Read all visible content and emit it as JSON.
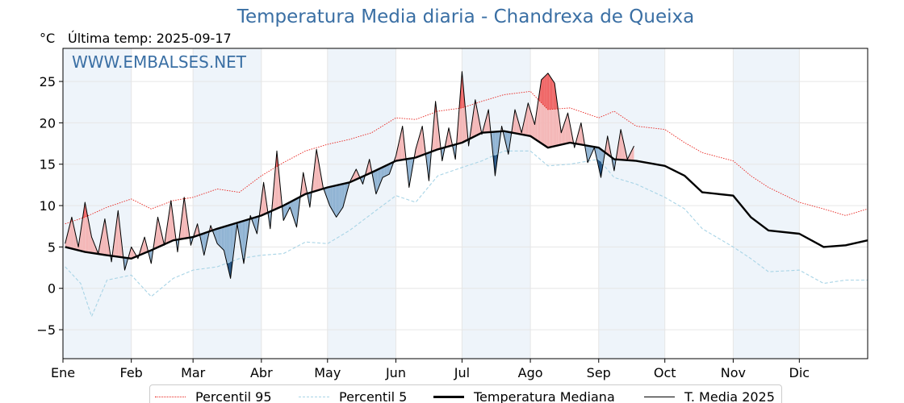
{
  "header": {
    "title": "Temperatura Media diaria - Chandrexa de Queixa",
    "unit": "°C",
    "last_temp_label": "Última temp: 2025-09-17",
    "watermark": "WWW.EMBALSES.NET"
  },
  "legend": {
    "p95": "Percentil 95",
    "p5": "Percentil 5",
    "median": "Temperatura Mediana",
    "current": "T. Media 2025"
  },
  "colors": {
    "title": "#3a6fa4",
    "p95": "#e8231d",
    "p5": "#a8d4e6",
    "median": "#000000",
    "current": "#000000",
    "above_fill": "#f4b6b6",
    "above_p95_fill": "#ef6464",
    "below_fill": "#8fb3d3",
    "below_p5_fill": "#1f4f7f",
    "month_band": "#eef4fa"
  },
  "chart_data": {
    "type": "line",
    "title": "Temperatura Media diaria - Chandrexa de Queixa",
    "ylabel": "°C",
    "ylim": [
      -8.5,
      29
    ],
    "xlim_days": [
      0,
      365
    ],
    "yticks": [
      -5,
      0,
      5,
      10,
      15,
      20,
      25
    ],
    "ytick_labels": [
      "−5",
      "0",
      "5",
      "10",
      "15",
      "20",
      "25"
    ],
    "months": [
      "Ene",
      "Feb",
      "Mar",
      "Abr",
      "May",
      "Jun",
      "Jul",
      "Ago",
      "Sep",
      "Oct",
      "Nov",
      "Dic"
    ],
    "grid": true,
    "legend_position": "bottom-center",
    "series": [
      {
        "name": "Percentil 95",
        "style": "dotted",
        "x": [
          1,
          10,
          20,
          31,
          40,
          50,
          59,
          70,
          80,
          90,
          100,
          110,
          120,
          130,
          140,
          151,
          160,
          170,
          181,
          190,
          200,
          212,
          220,
          230,
          243,
          250,
          260,
          273,
          282,
          290,
          304,
          312,
          320,
          334,
          345,
          355,
          365
        ],
        "y": [
          7.8,
          8.6,
          9.8,
          10.8,
          9.6,
          10.6,
          11.0,
          12.0,
          11.6,
          13.6,
          15.2,
          16.6,
          17.4,
          18.0,
          18.8,
          20.6,
          20.4,
          21.4,
          21.8,
          22.6,
          23.4,
          23.8,
          21.6,
          21.8,
          20.6,
          21.4,
          19.6,
          19.2,
          17.6,
          16.4,
          15.4,
          13.6,
          12.2,
          10.4,
          9.6,
          8.8,
          9.6
        ]
      },
      {
        "name": "Percentil 5",
        "style": "dashed",
        "x": [
          1,
          8,
          13,
          20,
          31,
          40,
          50,
          59,
          70,
          80,
          90,
          100,
          110,
          120,
          130,
          140,
          151,
          160,
          170,
          181,
          190,
          200,
          212,
          220,
          230,
          243,
          250,
          260,
          273,
          282,
          290,
          304,
          312,
          320,
          334,
          345,
          355,
          365
        ],
        "y": [
          2.6,
          0.6,
          -3.4,
          1.0,
          1.6,
          -1.0,
          1.2,
          2.2,
          2.6,
          3.6,
          4.0,
          4.2,
          5.6,
          5.4,
          7.0,
          9.0,
          11.2,
          10.4,
          13.6,
          14.6,
          15.4,
          16.6,
          16.6,
          14.8,
          15.0,
          15.6,
          13.4,
          12.6,
          11.0,
          9.6,
          7.2,
          5.0,
          3.6,
          2.0,
          2.2,
          0.6,
          1.0,
          1.0
        ]
      },
      {
        "name": "Temperatura Mediana",
        "style": "solid-thick",
        "x": [
          1,
          10,
          20,
          31,
          40,
          50,
          59,
          70,
          80,
          90,
          100,
          110,
          120,
          130,
          140,
          151,
          160,
          170,
          181,
          190,
          200,
          212,
          220,
          230,
          243,
          250,
          260,
          273,
          282,
          290,
          304,
          312,
          320,
          334,
          345,
          355,
          365
        ],
        "y": [
          5.0,
          4.4,
          4.0,
          3.6,
          4.6,
          5.8,
          6.2,
          7.2,
          8.0,
          8.8,
          10.0,
          11.4,
          12.2,
          12.8,
          14.0,
          15.4,
          15.8,
          16.8,
          17.6,
          18.8,
          19.0,
          18.4,
          17.0,
          17.6,
          17.0,
          15.6,
          15.4,
          14.8,
          13.6,
          11.6,
          11.2,
          8.6,
          7.0,
          6.6,
          5.0,
          5.2,
          5.8
        ]
      },
      {
        "name": "T. Media 2025",
        "style": "solid",
        "x": [
          1,
          4,
          7,
          10,
          13,
          16,
          19,
          22,
          25,
          28,
          31,
          34,
          37,
          40,
          43,
          46,
          49,
          52,
          55,
          58,
          61,
          64,
          67,
          70,
          73,
          76,
          79,
          82,
          85,
          88,
          91,
          94,
          97,
          100,
          103,
          106,
          109,
          112,
          115,
          118,
          121,
          124,
          127,
          130,
          133,
          136,
          139,
          142,
          145,
          148,
          151,
          154,
          157,
          160,
          163,
          166,
          169,
          172,
          175,
          178,
          181,
          184,
          187,
          190,
          193,
          196,
          199,
          202,
          205,
          208,
          211,
          214,
          217,
          220,
          223,
          226,
          229,
          232,
          235,
          238,
          241,
          244,
          247,
          250,
          253,
          256,
          259
        ],
        "y": [
          5.4,
          8.6,
          5.0,
          10.4,
          6.2,
          4.2,
          8.4,
          3.2,
          9.4,
          2.2,
          5.0,
          3.6,
          6.2,
          3.0,
          8.6,
          5.2,
          10.6,
          4.4,
          11.0,
          5.2,
          7.8,
          4.0,
          7.6,
          5.4,
          4.6,
          1.2,
          7.8,
          3.0,
          8.8,
          6.6,
          12.8,
          7.2,
          16.6,
          8.2,
          9.8,
          7.4,
          14.0,
          9.8,
          16.8,
          12.2,
          10.0,
          8.6,
          9.8,
          12.8,
          14.4,
          12.6,
          15.6,
          11.4,
          13.4,
          13.8,
          16.0,
          19.6,
          12.2,
          16.8,
          19.6,
          13.0,
          22.6,
          15.4,
          19.4,
          15.6,
          26.2,
          17.2,
          22.8,
          18.6,
          21.6,
          13.6,
          19.6,
          16.2,
          21.6,
          18.8,
          22.4,
          19.8,
          25.2,
          26.0,
          24.8,
          18.8,
          21.2,
          17.0,
          20.0,
          15.2,
          17.0,
          13.4,
          18.4,
          14.2,
          19.2,
          15.6,
          17.2
        ]
      }
    ]
  }
}
